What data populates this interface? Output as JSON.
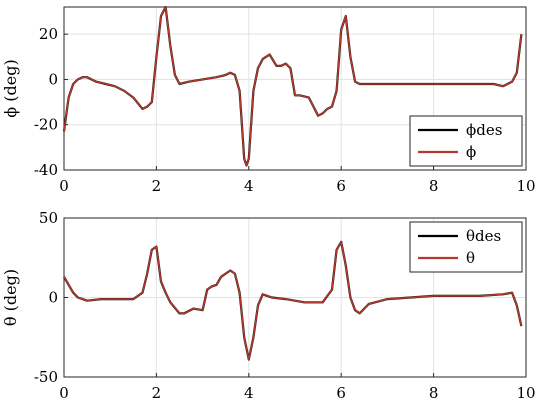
{
  "chart_data": [
    {
      "type": "line",
      "ylabel": "ϕ (deg)",
      "xlabel": "",
      "xlim": [
        0,
        10
      ],
      "ylim": [
        -40,
        32
      ],
      "xticks": [
        0,
        2,
        4,
        6,
        8,
        10
      ],
      "yticks": [
        -40,
        -20,
        0,
        20
      ],
      "xtick_labels": [
        "0",
        "2",
        "4",
        "6",
        "8",
        "10"
      ],
      "ytick_labels": [
        "-40",
        "-20",
        "0",
        "20"
      ],
      "grid": true,
      "legend_position": "bottom-right",
      "x": [
        0,
        0.1,
        0.2,
        0.3,
        0.4,
        0.5,
        0.7,
        0.9,
        1.1,
        1.3,
        1.5,
        1.7,
        1.8,
        1.9,
        2.0,
        2.1,
        2.2,
        2.3,
        2.4,
        2.5,
        2.7,
        3.0,
        3.3,
        3.5,
        3.6,
        3.7,
        3.8,
        3.9,
        3.95,
        4.0,
        4.1,
        4.2,
        4.3,
        4.45,
        4.6,
        4.7,
        4.8,
        4.9,
        5.0,
        5.1,
        5.3,
        5.4,
        5.5,
        5.6,
        5.7,
        5.8,
        5.9,
        6.0,
        6.1,
        6.2,
        6.3,
        6.4,
        6.5,
        7.0,
        8.0,
        9.0,
        9.3,
        9.5,
        9.6,
        9.7,
        9.8,
        9.9
      ],
      "series": [
        {
          "name": "ϕdes",
          "color": "#000000",
          "values": [
            -23,
            -8,
            -2,
            0,
            1,
            1,
            -1,
            -2,
            -3,
            -5,
            -8,
            -13,
            -12,
            -10,
            10,
            28,
            32,
            15,
            2,
            -2,
            -1,
            0,
            1,
            2,
            3,
            2,
            -5,
            -35,
            -38,
            -35,
            -5,
            5,
            9,
            11,
            6,
            6,
            7,
            5,
            -7,
            -7,
            -8,
            -12,
            -16,
            -15,
            -13,
            -12,
            -5,
            22,
            28,
            10,
            -1,
            -2,
            -2,
            -2,
            -2,
            -2,
            -2,
            -3,
            -2,
            -1,
            3,
            20
          ]
        },
        {
          "name": "ϕ",
          "color": "#b03a2e",
          "values": [
            -23,
            -8,
            -2,
            0,
            1,
            1,
            -1,
            -2,
            -3,
            -5,
            -8,
            -13,
            -12,
            -10,
            10,
            28,
            32,
            15,
            2,
            -2,
            -1,
            0,
            1,
            2,
            3,
            2,
            -5,
            -35,
            -38,
            -35,
            -5,
            5,
            9,
            11,
            6,
            6,
            7,
            5,
            -7,
            -7,
            -8,
            -12,
            -16,
            -15,
            -13,
            -12,
            -5,
            22,
            28,
            10,
            -1,
            -2,
            -2,
            -2,
            -2,
            -2,
            -2,
            -3,
            -2,
            -1,
            3,
            20
          ]
        }
      ]
    },
    {
      "type": "line",
      "ylabel": "θ (deg)",
      "xlabel": "",
      "xlim": [
        0,
        10
      ],
      "ylim": [
        -50,
        50
      ],
      "xticks": [
        0,
        2,
        4,
        6,
        8,
        10
      ],
      "yticks": [
        -50,
        0,
        50
      ],
      "xtick_labels": [
        "0",
        "2",
        "4",
        "6",
        "8",
        "10"
      ],
      "ytick_labels": [
        "-50",
        "0",
        "50"
      ],
      "grid": true,
      "legend_position": "top-right",
      "x": [
        0,
        0.1,
        0.2,
        0.3,
        0.5,
        0.8,
        1.2,
        1.5,
        1.7,
        1.8,
        1.9,
        2.0,
        2.1,
        2.2,
        2.3,
        2.5,
        2.6,
        2.8,
        3.0,
        3.1,
        3.2,
        3.3,
        3.4,
        3.5,
        3.6,
        3.7,
        3.8,
        3.9,
        4.0,
        4.1,
        4.2,
        4.3,
        4.4,
        4.5,
        4.8,
        5.2,
        5.6,
        5.8,
        5.9,
        6.0,
        6.1,
        6.2,
        6.3,
        6.4,
        6.6,
        7.0,
        8.0,
        9.0,
        9.5,
        9.7,
        9.8,
        9.9
      ],
      "series": [
        {
          "name": "θdes",
          "color": "#000000",
          "values": [
            13,
            8,
            3,
            0,
            -2,
            -1,
            -1,
            -1,
            3,
            15,
            30,
            32,
            10,
            3,
            -3,
            -10,
            -10,
            -7,
            -8,
            5,
            7,
            8,
            13,
            15,
            17,
            15,
            3,
            -25,
            -39,
            -25,
            -5,
            2,
            1,
            0,
            -1,
            -3,
            -3,
            5,
            30,
            35,
            20,
            0,
            -8,
            -10,
            -4,
            -1,
            1,
            1,
            2,
            3,
            -5,
            -18
          ]
        },
        {
          "name": "θ",
          "color": "#b03a2e",
          "values": [
            13,
            8,
            3,
            0,
            -2,
            -1,
            -1,
            -1,
            3,
            15,
            30,
            32,
            10,
            3,
            -3,
            -10,
            -10,
            -7,
            -8,
            5,
            7,
            8,
            13,
            15,
            17,
            15,
            3,
            -25,
            -39,
            -25,
            -5,
            2,
            1,
            0,
            -1,
            -3,
            -3,
            5,
            30,
            35,
            20,
            0,
            -8,
            -10,
            -4,
            -1,
            1,
            1,
            2,
            3,
            -5,
            -18
          ]
        }
      ]
    }
  ]
}
